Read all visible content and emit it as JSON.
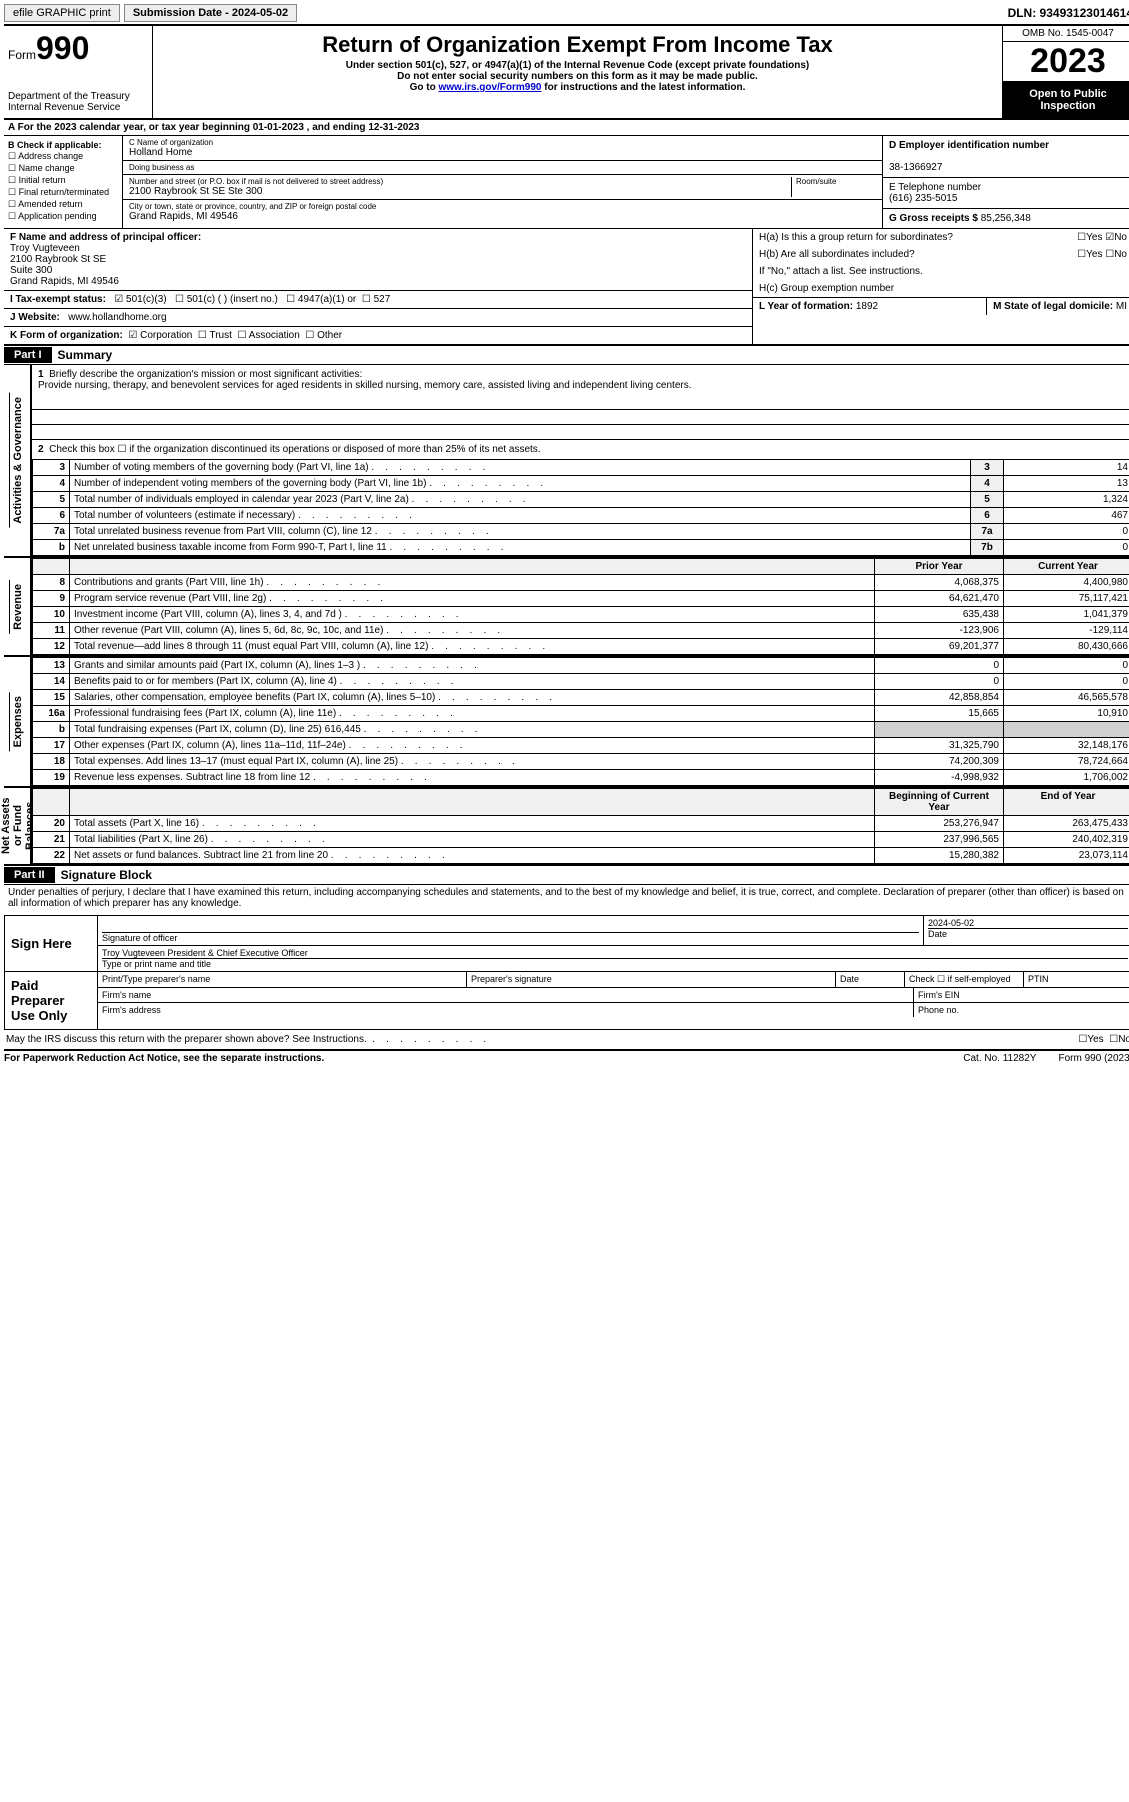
{
  "topbar": {
    "efile": "efile GRAPHIC print",
    "submission": "Submission Date - 2024-05-02",
    "dln": "DLN: 93493123014614"
  },
  "header": {
    "form_label": "Form",
    "form_num": "990",
    "dept": "Department of the Treasury",
    "irs": "Internal Revenue Service",
    "title": "Return of Organization Exempt From Income Tax",
    "sub1": "Under section 501(c), 527, or 4947(a)(1) of the Internal Revenue Code (except private foundations)",
    "sub2": "Do not enter social security numbers on this form as it may be made public.",
    "sub3_pre": "Go to ",
    "sub3_link": "www.irs.gov/Form990",
    "sub3_post": " for instructions and the latest information.",
    "omb": "OMB No. 1545-0047",
    "year": "2023",
    "inspect": "Open to Public Inspection"
  },
  "row_a": "A For the 2023 calendar year, or tax year beginning 01-01-2023   , and ending 12-31-2023",
  "col_b": {
    "title": "B Check if applicable:",
    "opts": [
      "Address change",
      "Name change",
      "Initial return",
      "Final return/terminated",
      "Amended return",
      "Application pending"
    ]
  },
  "col_c": {
    "name_label": "C Name of organization",
    "name": "Holland Home",
    "dba_label": "Doing business as",
    "dba": "",
    "street_label": "Number and street (or P.O. box if mail is not delivered to street address)",
    "room_label": "Room/suite",
    "street": "2100 Raybrook St SE Ste 300",
    "city_label": "City or town, state or province, country, and ZIP or foreign postal code",
    "city": "Grand Rapids, MI  49546"
  },
  "col_d": {
    "label": "D Employer identification number",
    "val": "38-1366927"
  },
  "col_e": {
    "label": "E Telephone number",
    "val": "(616) 235-5015"
  },
  "col_g": {
    "label": "G Gross receipts $",
    "val": "85,256,348"
  },
  "col_f": {
    "label": "F Name and address of principal officer:",
    "name": "Troy Vugteveen",
    "street": "2100 Raybrook St SE",
    "suite": "Suite 300",
    "city": "Grand Rapids, MI  49546"
  },
  "col_h": {
    "a": "H(a)  Is this a group return for subordinates?",
    "b": "H(b)  Are all subordinates included?",
    "note": "If \"No,\" attach a list. See instructions.",
    "c": "H(c)  Group exemption number",
    "yes": "Yes",
    "no": "No"
  },
  "row_i": {
    "label": "I   Tax-exempt status:",
    "o1": "501(c)(3)",
    "o2": "501(c) (  ) (insert no.)",
    "o3": "4947(a)(1) or",
    "o4": "527"
  },
  "row_j": {
    "label": "J   Website:",
    "val": "www.hollandhome.org"
  },
  "row_k": {
    "label": "K Form of organization:",
    "opts": [
      "Corporation",
      "Trust",
      "Association",
      "Other"
    ]
  },
  "row_l": {
    "label": "L Year of formation:",
    "val": "1892"
  },
  "row_m": {
    "label": "M State of legal domicile:",
    "val": "MI"
  },
  "part1": {
    "hdr": "Part I",
    "title": "Summary",
    "q1_label": "1",
    "q1": "Briefly describe the organization's mission or most significant activities:",
    "q1_text": "Provide nursing, therapy, and benevolent services for aged residents in skilled nursing, memory care, assisted living and independent living centers.",
    "q2_label": "2",
    "q2": "Check this box ☐ if the organization discontinued its operations or disposed of more than 25% of its net assets.",
    "rows_gov": [
      {
        "n": "3",
        "d": "Number of voting members of the governing body (Part VI, line 1a)",
        "b": "3",
        "v": "14"
      },
      {
        "n": "4",
        "d": "Number of independent voting members of the governing body (Part VI, line 1b)",
        "b": "4",
        "v": "13"
      },
      {
        "n": "5",
        "d": "Total number of individuals employed in calendar year 2023 (Part V, line 2a)",
        "b": "5",
        "v": "1,324"
      },
      {
        "n": "6",
        "d": "Total number of volunteers (estimate if necessary)",
        "b": "6",
        "v": "467"
      },
      {
        "n": "7a",
        "d": "Total unrelated business revenue from Part VIII, column (C), line 12",
        "b": "7a",
        "v": "0"
      },
      {
        "n": "b",
        "d": "Net unrelated business taxable income from Form 990-T, Part I, line 11",
        "b": "7b",
        "v": "0"
      }
    ],
    "hdr_prior": "Prior Year",
    "hdr_curr": "Current Year",
    "rows_rev": [
      {
        "n": "8",
        "d": "Contributions and grants (Part VIII, line 1h)",
        "p": "4,068,375",
        "c": "4,400,980"
      },
      {
        "n": "9",
        "d": "Program service revenue (Part VIII, line 2g)",
        "p": "64,621,470",
        "c": "75,117,421"
      },
      {
        "n": "10",
        "d": "Investment income (Part VIII, column (A), lines 3, 4, and 7d )",
        "p": "635,438",
        "c": "1,041,379"
      },
      {
        "n": "11",
        "d": "Other revenue (Part VIII, column (A), lines 5, 6d, 8c, 9c, 10c, and 11e)",
        "p": "-123,906",
        "c": "-129,114"
      },
      {
        "n": "12",
        "d": "Total revenue—add lines 8 through 11 (must equal Part VIII, column (A), line 12)",
        "p": "69,201,377",
        "c": "80,430,666"
      }
    ],
    "rows_exp": [
      {
        "n": "13",
        "d": "Grants and similar amounts paid (Part IX, column (A), lines 1–3 )",
        "p": "0",
        "c": "0"
      },
      {
        "n": "14",
        "d": "Benefits paid to or for members (Part IX, column (A), line 4)",
        "p": "0",
        "c": "0"
      },
      {
        "n": "15",
        "d": "Salaries, other compensation, employee benefits (Part IX, column (A), lines 5–10)",
        "p": "42,858,854",
        "c": "46,565,578"
      },
      {
        "n": "16a",
        "d": "Professional fundraising fees (Part IX, column (A), line 11e)",
        "p": "15,665",
        "c": "10,910"
      },
      {
        "n": "b",
        "d": "Total fundraising expenses (Part IX, column (D), line 25) 616,445",
        "p": "",
        "c": "",
        "grey": true
      },
      {
        "n": "17",
        "d": "Other expenses (Part IX, column (A), lines 11a–11d, 11f–24e)",
        "p": "31,325,790",
        "c": "32,148,176"
      },
      {
        "n": "18",
        "d": "Total expenses. Add lines 13–17 (must equal Part IX, column (A), line 25)",
        "p": "74,200,309",
        "c": "78,724,664"
      },
      {
        "n": "19",
        "d": "Revenue less expenses. Subtract line 18 from line 12",
        "p": "-4,998,932",
        "c": "1,706,002"
      }
    ],
    "hdr_boy": "Beginning of Current Year",
    "hdr_eoy": "End of Year",
    "rows_net": [
      {
        "n": "20",
        "d": "Total assets (Part X, line 16)",
        "p": "253,276,947",
        "c": "263,475,433"
      },
      {
        "n": "21",
        "d": "Total liabilities (Part X, line 26)",
        "p": "237,996,565",
        "c": "240,402,319"
      },
      {
        "n": "22",
        "d": "Net assets or fund balances. Subtract line 21 from line 20",
        "p": "15,280,382",
        "c": "23,073,114"
      }
    ],
    "vlab_gov": "Activities & Governance",
    "vlab_rev": "Revenue",
    "vlab_exp": "Expenses",
    "vlab_net": "Net Assets or Fund Balances"
  },
  "part2": {
    "hdr": "Part II",
    "title": "Signature Block",
    "decl": "Under penalties of perjury, I declare that I have examined this return, including accompanying schedules and statements, and to the best of my knowledge and belief, it is true, correct, and complete. Declaration of preparer (other than officer) is based on all information of which preparer has any knowledge.",
    "sign_here": "Sign Here",
    "sig_officer": "Signature of officer",
    "date": "Date",
    "date_val": "2024-05-02",
    "officer_name": "Troy Vugteveen  President & Chief Executive Officer",
    "type_name": "Type or print name and title",
    "paid": "Paid Preparer Use Only",
    "pt_name": "Print/Type preparer's name",
    "pt_sig": "Preparer's signature",
    "pt_date": "Date",
    "pt_check": "Check ☐ if self-employed",
    "ptin": "PTIN",
    "firm_name": "Firm's name",
    "firm_ein": "Firm's EIN",
    "firm_addr": "Firm's address",
    "phone": "Phone no.",
    "discuss": "May the IRS discuss this return with the preparer shown above? See Instructions.",
    "yes": "Yes",
    "no": "No"
  },
  "footer": {
    "pra": "For Paperwork Reduction Act Notice, see the separate instructions.",
    "cat": "Cat. No. 11282Y",
    "form": "Form 990 (2023)"
  }
}
